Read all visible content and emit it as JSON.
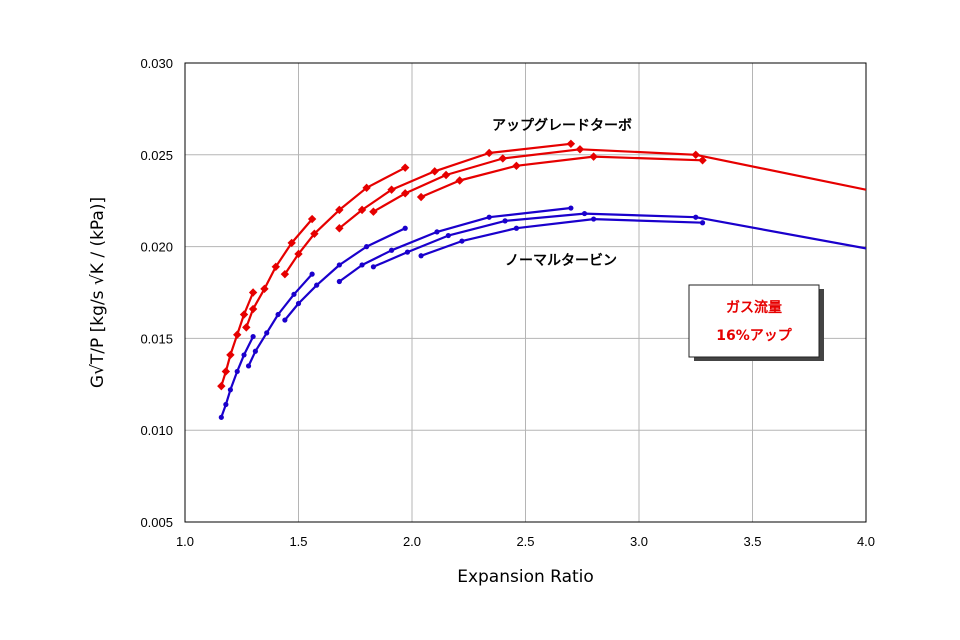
{
  "chart_data": {
    "type": "line",
    "title": "",
    "xlabel": "Expansion Ratio",
    "ylabel": "G√T/P [kg/s √K / (kPa)]",
    "xlim": [
      1.0,
      4.0
    ],
    "ylim": [
      0.005,
      0.03
    ],
    "x_ticks": [
      "1.0",
      "1.5",
      "2.0",
      "2.5",
      "3.0",
      "3.5",
      "4.0"
    ],
    "y_ticks": [
      "0.005",
      "0.010",
      "0.015",
      "0.020",
      "0.025",
      "0.030"
    ],
    "grid": true,
    "colors": {
      "upgrade": "#e60000",
      "normal": "#1a00cc"
    },
    "annotations": {
      "upgrade_label": "アップグレードターボ",
      "normal_label": "ノーマルタービン",
      "callout_line1": "ガス流量",
      "callout_line2": "16%アップ"
    },
    "series": [
      {
        "group": "upgrade",
        "marker": "diamond",
        "x": [
          1.16,
          1.18,
          1.2,
          1.23,
          1.26,
          1.3
        ],
        "y": [
          0.0124,
          0.0132,
          0.0141,
          0.0152,
          0.0163,
          0.0175
        ]
      },
      {
        "group": "upgrade",
        "marker": "diamond",
        "x": [
          1.27,
          1.3,
          1.35,
          1.4,
          1.47,
          1.56
        ],
        "y": [
          0.0156,
          0.0166,
          0.0177,
          0.0189,
          0.0202,
          0.0215
        ]
      },
      {
        "group": "upgrade",
        "marker": "diamond",
        "x": [
          1.44,
          1.5,
          1.57,
          1.68,
          1.8,
          1.97
        ],
        "y": [
          0.0185,
          0.0196,
          0.0207,
          0.022,
          0.0232,
          0.0243
        ]
      },
      {
        "group": "upgrade",
        "marker": "diamond",
        "x": [
          1.68,
          1.78,
          1.91,
          2.1,
          2.34,
          2.7
        ],
        "y": [
          0.021,
          0.022,
          0.0231,
          0.0241,
          0.0251,
          0.0256
        ]
      },
      {
        "group": "upgrade",
        "marker": "diamond",
        "x": [
          1.83,
          1.97,
          2.15,
          2.4,
          2.74,
          3.25,
          4.0
        ],
        "y": [
          0.0219,
          0.0229,
          0.0239,
          0.0248,
          0.0253,
          0.025,
          0.0231
        ]
      },
      {
        "group": "upgrade",
        "marker": "diamond",
        "x": [
          2.04,
          2.21,
          2.46,
          2.8,
          3.28
        ],
        "y": [
          0.0227,
          0.0236,
          0.0244,
          0.0249,
          0.0247
        ]
      },
      {
        "group": "normal",
        "marker": "circle",
        "x": [
          1.16,
          1.18,
          1.2,
          1.23,
          1.26,
          1.3
        ],
        "y": [
          0.0107,
          0.0114,
          0.0122,
          0.0132,
          0.0141,
          0.0151
        ]
      },
      {
        "group": "normal",
        "marker": "circle",
        "x": [
          1.28,
          1.31,
          1.36,
          1.41,
          1.48,
          1.56
        ],
        "y": [
          0.0135,
          0.0143,
          0.0153,
          0.0163,
          0.0174,
          0.0185
        ]
      },
      {
        "group": "normal",
        "marker": "circle",
        "x": [
          1.44,
          1.5,
          1.58,
          1.68,
          1.8,
          1.97
        ],
        "y": [
          0.016,
          0.0169,
          0.0179,
          0.019,
          0.02,
          0.021
        ]
      },
      {
        "group": "normal",
        "marker": "circle",
        "x": [
          1.68,
          1.78,
          1.91,
          2.11,
          2.34,
          2.7
        ],
        "y": [
          0.0181,
          0.019,
          0.0198,
          0.0208,
          0.0216,
          0.0221
        ]
      },
      {
        "group": "normal",
        "marker": "circle",
        "x": [
          1.83,
          1.98,
          2.16,
          2.41,
          2.76,
          3.25,
          4.0
        ],
        "y": [
          0.0189,
          0.0197,
          0.0206,
          0.0214,
          0.0218,
          0.0216,
          0.0199
        ]
      },
      {
        "group": "normal",
        "marker": "circle",
        "x": [
          2.04,
          2.22,
          2.46,
          2.8,
          3.28
        ],
        "y": [
          0.0195,
          0.0203,
          0.021,
          0.0215,
          0.0213
        ]
      }
    ]
  }
}
